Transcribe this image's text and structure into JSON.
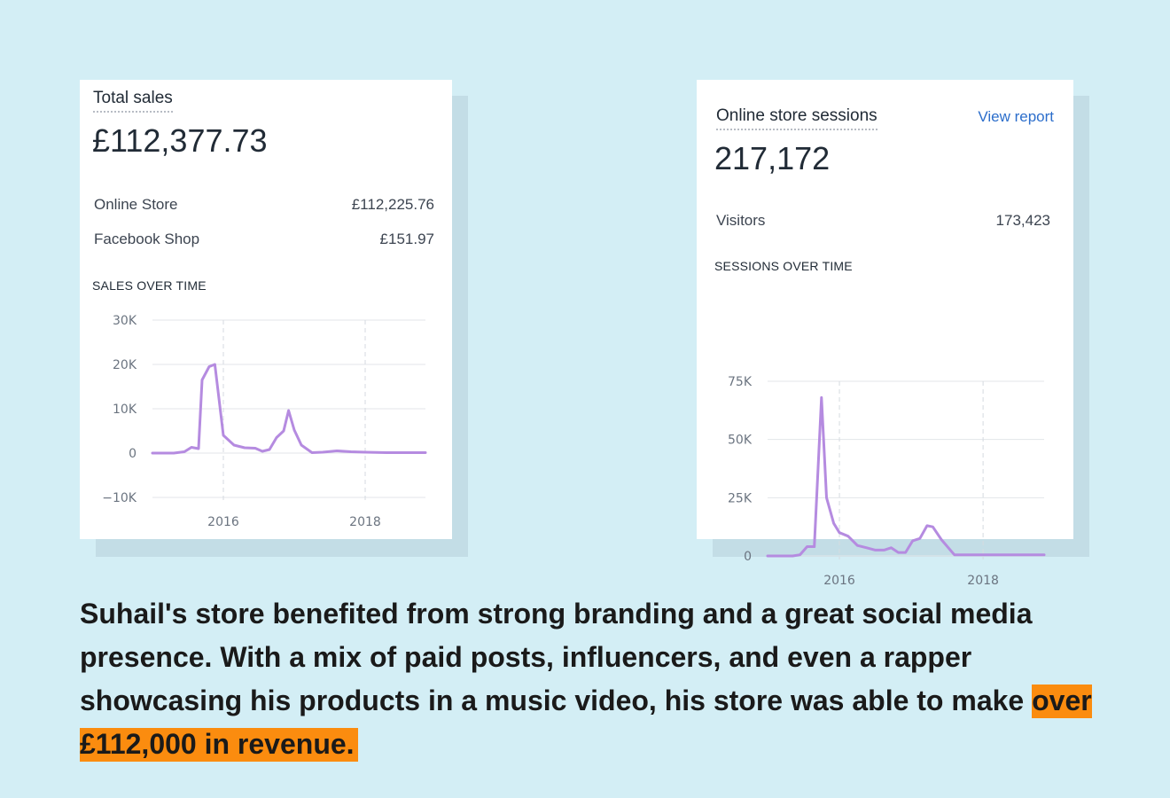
{
  "colors": {
    "background": "#d3eef5",
    "line": "#b58be0",
    "highlight": "#fb8c0f"
  },
  "total_sales": {
    "title": "Total sales",
    "value": "£112,377.73",
    "rows": [
      {
        "label": "Online Store",
        "value": "£112,225.76"
      },
      {
        "label": "Facebook Shop",
        "value": "£151.97"
      }
    ],
    "section_label": "SALES OVER TIME"
  },
  "sessions": {
    "title": "Online store sessions",
    "link": "View report",
    "value": "217,172",
    "rows": [
      {
        "label": "Visitors",
        "value": "173,423"
      }
    ],
    "section_label": "SESSIONS OVER TIME"
  },
  "caption": {
    "text": "Suhail's store benefited from strong branding and a great social media presence. With a mix of paid posts, influencers, and even a rapper showcasing his products in a music video, his store was able to make ",
    "highlight": "over £112,000 in revenue."
  },
  "chart_data": [
    {
      "type": "line",
      "title": "SALES OVER TIME",
      "ylim": [
        -10000,
        30000
      ],
      "xlim": [
        2015.0,
        2018.85
      ],
      "y_ticks": [
        30000,
        20000,
        10000,
        0,
        -10000
      ],
      "y_tick_labels": [
        "30K",
        "20K",
        "10K",
        "0",
        "−10K"
      ],
      "x_ticks": [
        2016,
        2018
      ],
      "x_tick_labels": [
        "2016",
        "2018"
      ],
      "grid": true,
      "series": [
        {
          "name": "Sales",
          "x": [
            2015.0,
            2015.3,
            2015.45,
            2015.55,
            2015.65,
            2015.7,
            2015.8,
            2015.88,
            2016.0,
            2016.15,
            2016.3,
            2016.45,
            2016.55,
            2016.65,
            2016.75,
            2016.85,
            2016.92,
            2017.0,
            2017.1,
            2017.25,
            2017.4,
            2017.6,
            2017.8,
            2018.0,
            2018.3,
            2018.6,
            2018.85
          ],
          "values": [
            0,
            0,
            300,
            1300,
            1000,
            16500,
            19500,
            20000,
            4000,
            1800,
            1200,
            1100,
            400,
            800,
            3500,
            5000,
            9600,
            5200,
            1800,
            100,
            200,
            500,
            300,
            200,
            100,
            100,
            100
          ]
        }
      ]
    },
    {
      "type": "line",
      "title": "SESSIONS OVER TIME",
      "ylim": [
        0,
        75000
      ],
      "xlim": [
        2015.0,
        2018.85
      ],
      "y_ticks": [
        75000,
        50000,
        25000,
        0
      ],
      "y_tick_labels": [
        "75K",
        "50K",
        "25K",
        "0"
      ],
      "x_ticks": [
        2016,
        2018
      ],
      "x_tick_labels": [
        "2016",
        "2018"
      ],
      "grid": true,
      "series": [
        {
          "name": "Sessions",
          "x": [
            2015.0,
            2015.35,
            2015.45,
            2015.55,
            2015.65,
            2015.75,
            2015.82,
            2015.92,
            2016.0,
            2016.12,
            2016.25,
            2016.38,
            2016.5,
            2016.62,
            2016.72,
            2016.82,
            2016.92,
            2017.02,
            2017.12,
            2017.22,
            2017.3,
            2017.42,
            2017.6,
            2017.8,
            2018.0,
            2018.3,
            2018.6,
            2018.85
          ],
          "values": [
            0,
            0,
            500,
            4000,
            4000,
            68000,
            25000,
            14000,
            10000,
            8500,
            4500,
            3500,
            2500,
            2500,
            3500,
            1500,
            1500,
            6500,
            7500,
            13000,
            12500,
            7000,
            500,
            500,
            500,
            500,
            500,
            500
          ]
        }
      ]
    }
  ]
}
